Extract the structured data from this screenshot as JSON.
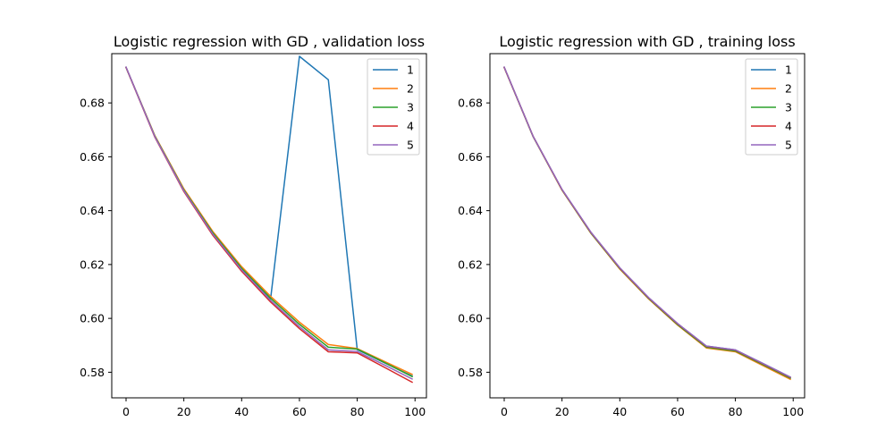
{
  "chart_data": [
    {
      "type": "line",
      "title": "Logistic regression with GD , validation loss",
      "xlabel": "",
      "ylabel": "",
      "xlim": [
        -4.95,
        103.95
      ],
      "ylim": [
        0.5705,
        0.6983
      ],
      "xticks": [
        0,
        20,
        40,
        60,
        80,
        100
      ],
      "yticks": [
        0.58,
        0.6,
        0.62,
        0.64,
        0.66,
        0.68
      ],
      "ytick_labels": [
        "0.58",
        "0.60",
        "0.62",
        "0.64",
        "0.66",
        "0.68"
      ],
      "grid": false,
      "legend_position": "top-right",
      "x": [
        0,
        10,
        20,
        30,
        40,
        50,
        60,
        70,
        80,
        90,
        99
      ],
      "series": [
        {
          "name": "1",
          "color": "#1f77b4",
          "values": [
            0.6932,
            0.6675,
            0.6475,
            0.6315,
            0.6183,
            0.6071,
            0.6973,
            0.6886,
            0.5884,
            0.5832,
            0.5786
          ]
        },
        {
          "name": "2",
          "color": "#ff7f0e",
          "values": [
            0.6932,
            0.6678,
            0.6481,
            0.6323,
            0.6192,
            0.6082,
            0.5986,
            0.5903,
            0.5888,
            0.5837,
            0.5792
          ]
        },
        {
          "name": "3",
          "color": "#2ca02c",
          "values": [
            0.6932,
            0.6676,
            0.6477,
            0.6318,
            0.6186,
            0.6075,
            0.5978,
            0.5893,
            0.5886,
            0.5833,
            0.5784
          ]
        },
        {
          "name": "4",
          "color": "#d62728",
          "values": [
            0.6932,
            0.6672,
            0.6471,
            0.6309,
            0.6175,
            0.6061,
            0.5962,
            0.5876,
            0.5872,
            0.5815,
            0.5763
          ]
        },
        {
          "name": "5",
          "color": "#9467bd",
          "values": [
            0.6933,
            0.6674,
            0.6474,
            0.6313,
            0.618,
            0.6067,
            0.5969,
            0.5883,
            0.5877,
            0.5824,
            0.5775
          ]
        }
      ]
    },
    {
      "type": "line",
      "title": "Logistic regression with GD , training loss",
      "xlabel": "",
      "ylabel": "",
      "xlim": [
        -4.95,
        103.95
      ],
      "ylim": [
        0.5705,
        0.6983
      ],
      "xticks": [
        0,
        20,
        40,
        60,
        80,
        100
      ],
      "yticks": [
        0.58,
        0.6,
        0.62,
        0.64,
        0.66,
        0.68
      ],
      "ytick_labels": [
        "0.58",
        "0.60",
        "0.62",
        "0.64",
        "0.66",
        "0.68"
      ],
      "grid": false,
      "legend_position": "top-right",
      "x": [
        0,
        10,
        20,
        30,
        40,
        50,
        60,
        70,
        80,
        90,
        99
      ],
      "series": [
        {
          "name": "1",
          "color": "#1f77b4",
          "values": [
            0.6932,
            0.6676,
            0.6478,
            0.6319,
            0.6187,
            0.6076,
            0.598,
            0.5897,
            0.5883,
            0.583,
            0.5782
          ]
        },
        {
          "name": "2",
          "color": "#ff7f0e",
          "values": [
            0.6932,
            0.6675,
            0.6476,
            0.6316,
            0.6183,
            0.6072,
            0.5975,
            0.589,
            0.5876,
            0.5822,
            0.5774
          ]
        },
        {
          "name": "3",
          "color": "#2ca02c",
          "values": [
            0.6932,
            0.6675,
            0.6477,
            0.6317,
            0.6185,
            0.6074,
            0.5977,
            0.5893,
            0.5879,
            0.5826,
            0.5778
          ]
        },
        {
          "name": "4",
          "color": "#d62728",
          "values": [
            0.6932,
            0.6676,
            0.6478,
            0.6319,
            0.6187,
            0.6076,
            0.598,
            0.5896,
            0.5882,
            0.5829,
            0.5781
          ]
        },
        {
          "name": "5",
          "color": "#9467bd",
          "values": [
            0.6933,
            0.6676,
            0.6479,
            0.632,
            0.6188,
            0.6077,
            0.5981,
            0.5897,
            0.5883,
            0.583,
            0.5782
          ]
        }
      ]
    }
  ]
}
